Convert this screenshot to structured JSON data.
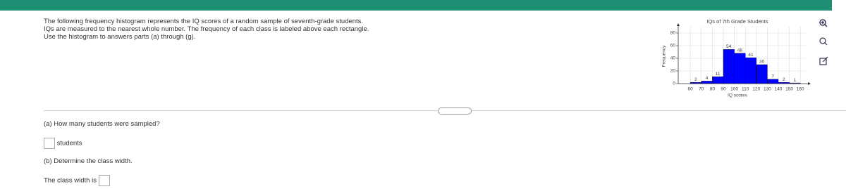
{
  "question": {
    "intro": [
      "The following frequency histogram represents the IQ scores of a random sample of seventh-grade students.",
      "IQs are measured to the nearest whole number. The frequency of each class is labeled above each rectangle.",
      "Use the histogram to answers parts (a) through (g)."
    ],
    "parts": [
      {
        "prompt": "(a) How many students were sampled?",
        "answer_suffix": "students"
      },
      {
        "prompt": "(b) Determine the class width.",
        "answer_prefix": "The class width is"
      }
    ]
  },
  "chart_data": {
    "type": "histogram",
    "title": "IQs of 7th Grade Students",
    "xlabel": "IQ scores",
    "ylabel": "Frequency",
    "bins": [
      60,
      70,
      80,
      90,
      100,
      110,
      120,
      130,
      140,
      150,
      160
    ],
    "values": [
      2,
      4,
      11,
      54,
      48,
      41,
      30,
      7,
      2,
      1
    ],
    "color": "#0000ff",
    "xlim": [
      49,
      165
    ],
    "ylim": [
      0,
      90
    ],
    "xticks": [
      60,
      70,
      80,
      90,
      100,
      110,
      120,
      130,
      140,
      150,
      160
    ],
    "yticks": [
      0,
      20,
      40,
      60,
      80
    ],
    "grid": true
  }
}
